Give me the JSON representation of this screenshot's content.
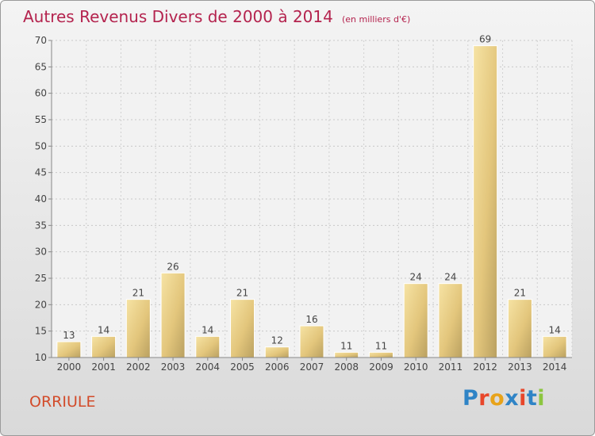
{
  "chart_data": {
    "type": "bar",
    "title": "Autres Revenus Divers de 2000 à 2014",
    "subtitle": "(en milliers d'€)",
    "categories": [
      "2000",
      "2001",
      "2002",
      "2003",
      "2004",
      "2005",
      "2006",
      "2007",
      "2008",
      "2009",
      "2010",
      "2011",
      "2012",
      "2013",
      "2014"
    ],
    "values": [
      13,
      14,
      21,
      26,
      14,
      21,
      12,
      16,
      11,
      11,
      24,
      24,
      69,
      21,
      14
    ],
    "ylim": [
      10,
      70
    ],
    "yticks": [
      10,
      15,
      20,
      25,
      30,
      35,
      40,
      45,
      50,
      55,
      60,
      65,
      70
    ],
    "grid": true,
    "bar_color": "#e8cf86"
  },
  "footer": {
    "commune": "ORRIULE",
    "logo": "Proxiti"
  },
  "colors": {
    "title": "#b4234e",
    "commune": "#d24b2a",
    "logo_letters": [
      "#2f84c6",
      "#e8462a",
      "#e8a31a",
      "#2f84c6",
      "#e8462a",
      "#2f84c6",
      "#8cc63f"
    ]
  }
}
